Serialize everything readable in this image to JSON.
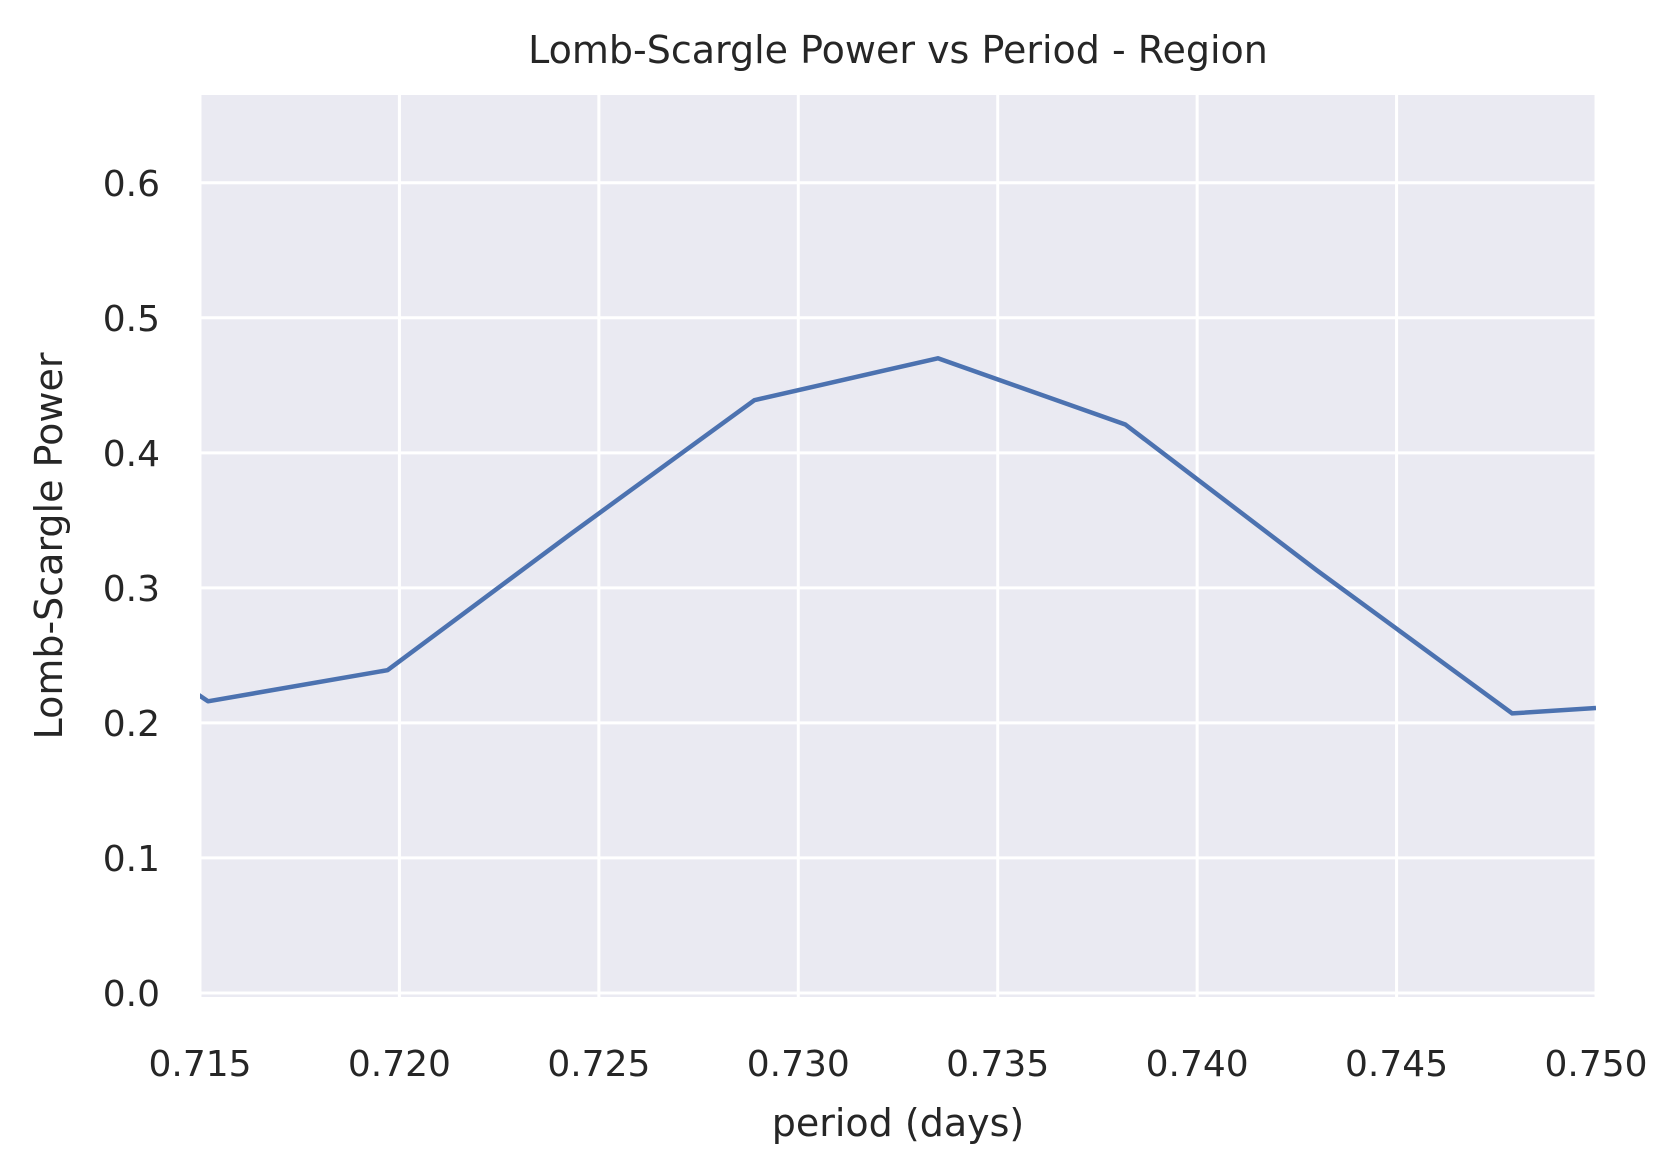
{
  "chart_data": {
    "type": "line",
    "title": "Lomb-Scargle Power vs Period - Region",
    "xlabel": "period (days)",
    "ylabel": "Lomb-Scargle Power",
    "xlim": [
      0.715,
      0.75
    ],
    "ylim": [
      -0.003,
      0.665
    ],
    "grid": true,
    "background_color": "#eaeaf2",
    "grid_color": "#ffffff",
    "xticks": [
      0.715,
      0.72,
      0.725,
      0.73,
      0.735,
      0.74,
      0.745,
      0.75
    ],
    "xtick_labels": [
      "0.715",
      "0.720",
      "0.725",
      "0.730",
      "0.735",
      "0.740",
      "0.745",
      "0.750"
    ],
    "yticks": [
      0.0,
      0.1,
      0.2,
      0.3,
      0.4,
      0.5,
      0.6
    ],
    "ytick_labels": [
      "0.0",
      "0.1",
      "0.2",
      "0.3",
      "0.4",
      "0.5",
      "0.6"
    ],
    "series": [
      {
        "color": "#4c72b0",
        "x": [
          0.7149,
          0.7152,
          0.7197,
          0.7243,
          0.7289,
          0.7335,
          0.7382,
          0.743,
          0.7479,
          0.75
        ],
        "y": [
          0.222,
          0.216,
          0.239,
          0.34,
          0.439,
          0.47,
          0.421,
          0.313,
          0.207,
          0.211
        ]
      }
    ]
  }
}
